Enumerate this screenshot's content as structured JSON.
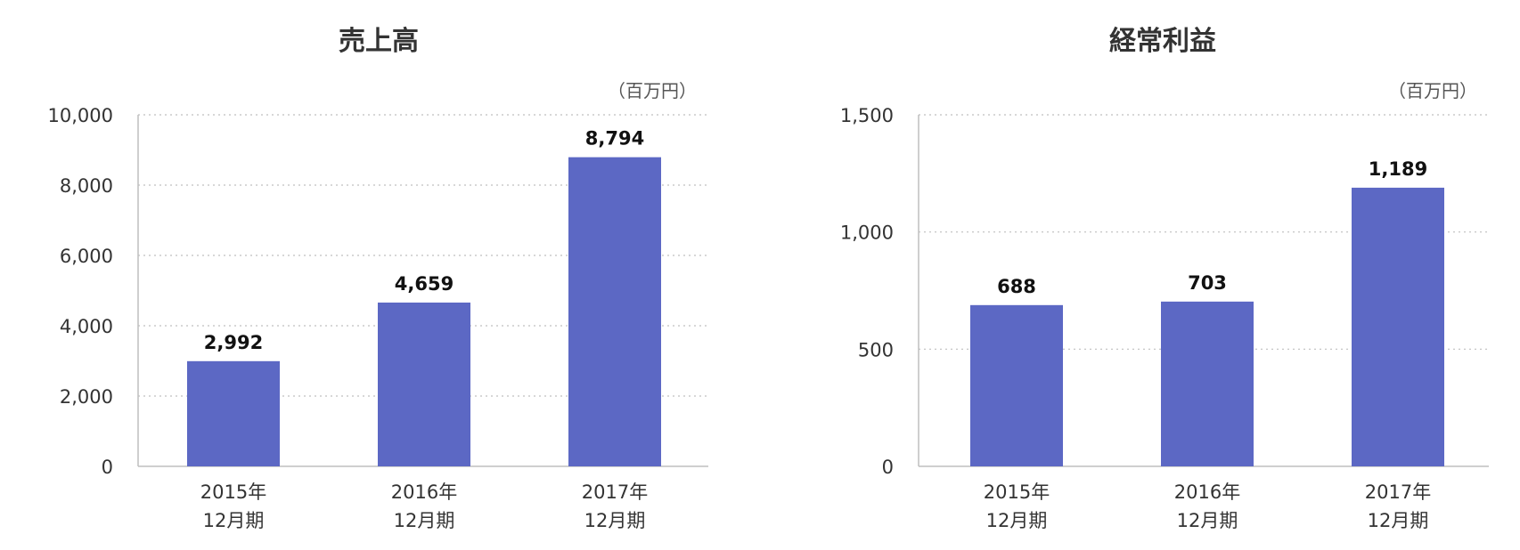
{
  "chart_data": [
    {
      "type": "bar",
      "title": "売上高",
      "unit": "（百万円）",
      "categories": [
        [
          "2015年",
          "12月期"
        ],
        [
          "2016年",
          "12月期"
        ],
        [
          "2017年",
          "12月期"
        ]
      ],
      "values": [
        2992,
        4659,
        8794
      ],
      "value_labels": [
        "2,992",
        "4,659",
        "8,794"
      ],
      "ylim": [
        0,
        10000
      ],
      "yticks": [
        0,
        2000,
        4000,
        6000,
        8000,
        10000
      ],
      "ytick_labels": [
        "0",
        "2,000",
        "4,000",
        "6,000",
        "8,000",
        "10,000"
      ],
      "grid": true,
      "bar_color": "#5c68c4"
    },
    {
      "type": "bar",
      "title": "経常利益",
      "unit": "（百万円）",
      "categories": [
        [
          "2015年",
          "12月期"
        ],
        [
          "2016年",
          "12月期"
        ],
        [
          "2017年",
          "12月期"
        ]
      ],
      "values": [
        688,
        703,
        1189
      ],
      "value_labels": [
        "688",
        "703",
        "1,189"
      ],
      "ylim": [
        0,
        1500
      ],
      "yticks": [
        0,
        500,
        1000,
        1500
      ],
      "ytick_labels": [
        "0",
        "500",
        "1,000",
        "1,500"
      ],
      "grid": true,
      "bar_color": "#5c68c4"
    }
  ]
}
